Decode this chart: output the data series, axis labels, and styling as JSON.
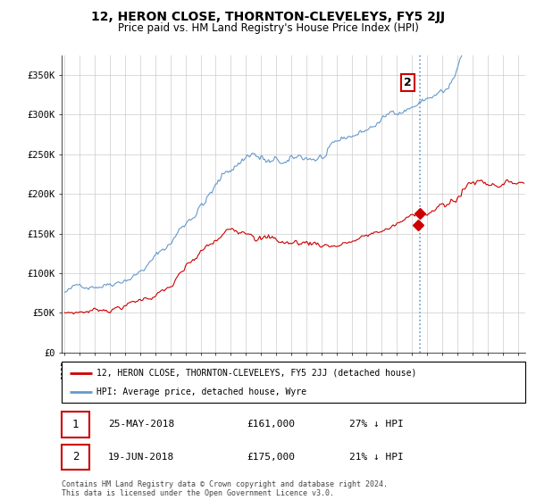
{
  "title": "12, HERON CLOSE, THORNTON-CLEVELEYS, FY5 2JJ",
  "subtitle": "Price paid vs. HM Land Registry's House Price Index (HPI)",
  "legend_label_red": "12, HERON CLOSE, THORNTON-CLEVELEYS, FY5 2JJ (detached house)",
  "legend_label_blue": "HPI: Average price, detached house, Wyre",
  "table_rows": [
    {
      "num": "1",
      "date": "25-MAY-2018",
      "price": "£161,000",
      "hpi": "27% ↓ HPI"
    },
    {
      "num": "2",
      "date": "19-JUN-2018",
      "price": "£175,000",
      "hpi": "21% ↓ HPI"
    }
  ],
  "footer": "Contains HM Land Registry data © Crown copyright and database right 2024.\nThis data is licensed under the Open Government Licence v3.0.",
  "ylim": [
    0,
    375000
  ],
  "yticks": [
    0,
    50000,
    100000,
    150000,
    200000,
    250000,
    300000,
    350000
  ],
  "year_start": 1995,
  "year_end": 2025,
  "vline_year": 2018.5,
  "vline_color": "#6699cc",
  "marker1_year": 2018.38,
  "marker1_value": 161000,
  "marker2_year": 2018.5,
  "marker2_value": 175000,
  "red_color": "#cc0000",
  "blue_color": "#6699cc",
  "background_color": "#ffffff",
  "grid_color": "#cccccc",
  "annotation2_value": 340000
}
